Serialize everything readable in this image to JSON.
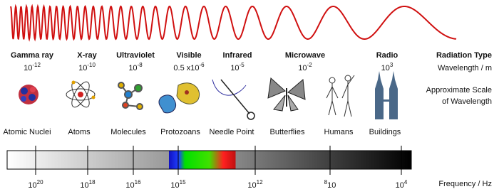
{
  "radiation_types": [
    {
      "name": "Gamma ray",
      "wavelength": {
        "base": "10",
        "exp": "-12"
      }
    },
    {
      "name": "X-ray",
      "wavelength": {
        "base": "10",
        "exp": "-10"
      }
    },
    {
      "name": "Ultraviolet",
      "wavelength": {
        "base": "10",
        "exp": "-8"
      }
    },
    {
      "name": "Visible",
      "wavelength": {
        "base": "0.5 x10",
        "exp": "-6"
      }
    },
    {
      "name": "Infrared",
      "wavelength": {
        "base": "10",
        "exp": "-5"
      }
    },
    {
      "name": "Microwave",
      "wavelength": {
        "base": "10",
        "exp": "-2"
      }
    },
    {
      "name": "Radio",
      "wavelength": {
        "base": "10",
        "exp": "3"
      }
    }
  ],
  "row_labels": {
    "type": "Radiation Type",
    "wavelength": "Wavelength / m",
    "scale_1": "Approximate Scale",
    "scale_2": "of Wavelength",
    "frequency": "Frequency / Hz"
  },
  "scale_objects": [
    "Atomic Nuclei",
    "Atoms",
    "Molecules",
    "Protozoans",
    "Needle Point",
    "Butterflies",
    "Humans",
    "Buildings"
  ],
  "frequencies": [
    {
      "base": "10",
      "exp": "20"
    },
    {
      "base": "10",
      "exp": "18"
    },
    {
      "base": "10",
      "exp": "16"
    },
    {
      "base": "10",
      "exp": "15"
    },
    {
      "base": "10",
      "exp": "12"
    },
    {
      "pre": "8",
      "base": "10"
    },
    {
      "base": "10",
      "exp": "4"
    }
  ]
}
